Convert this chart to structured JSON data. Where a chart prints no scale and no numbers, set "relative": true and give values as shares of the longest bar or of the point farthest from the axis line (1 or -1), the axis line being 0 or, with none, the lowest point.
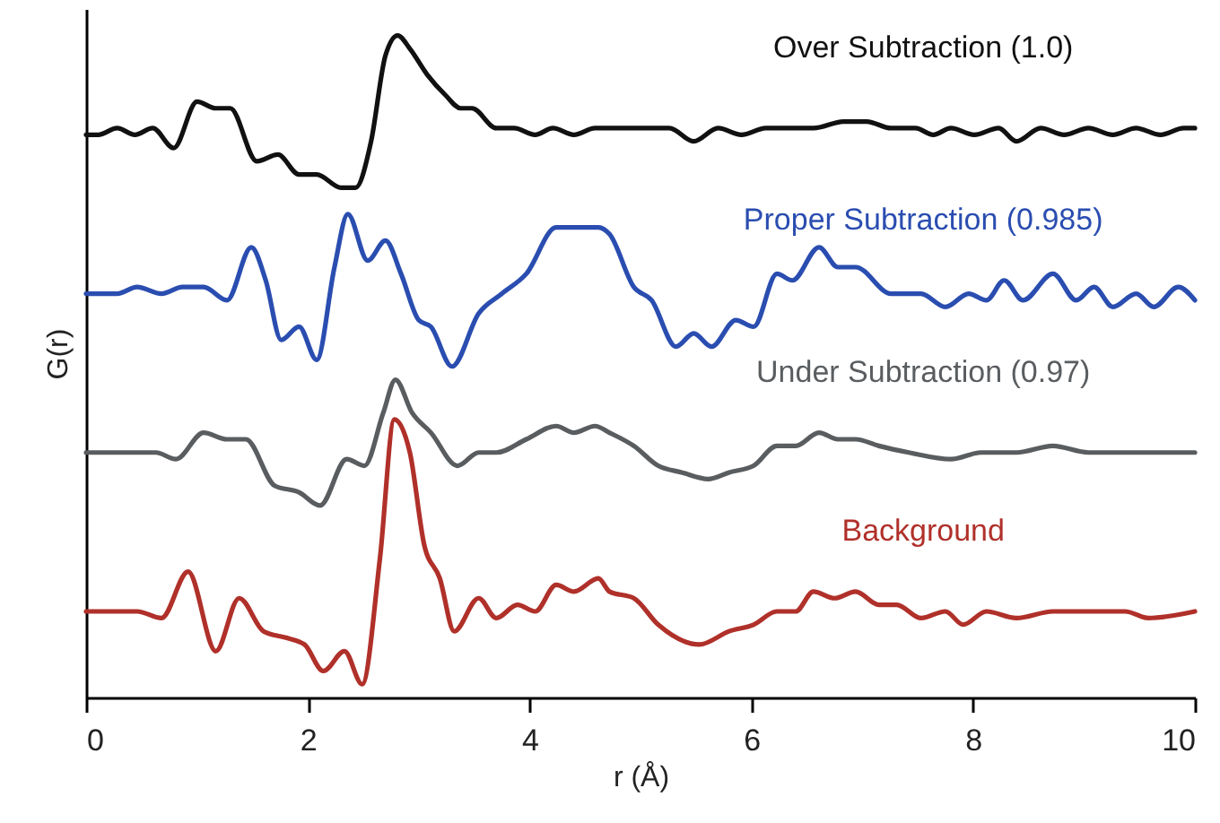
{
  "chart_data": {
    "type": "line",
    "relative": true,
    "xlabel": "r (Å)",
    "ylabel": "G(r)",
    "xlim": [
      0,
      10
    ],
    "xticks": [
      0,
      2,
      4,
      6,
      8,
      10
    ],
    "grid": false,
    "marker": "none",
    "line_style": "solid",
    "series": [
      {
        "name": "Over Subtraction (1.0)",
        "color": "#111111",
        "x": [
          0,
          0.11,
          0.28,
          0.44,
          0.6,
          0.79,
          1.0,
          1.17,
          1.3,
          1.54,
          1.73,
          1.92,
          2.08,
          2.3,
          2.43,
          2.57,
          2.7,
          2.81,
          2.92,
          3.08,
          3.24,
          3.38,
          3.48,
          3.7,
          3.86,
          4.05,
          4.21,
          4.4,
          4.59,
          4.72,
          4.94,
          5.1,
          5.26,
          5.48,
          5.7,
          5.91,
          6.13,
          6.34,
          6.56,
          6.83,
          7.04,
          7.26,
          7.48,
          7.64,
          7.8,
          8.01,
          8.23,
          8.39,
          8.61,
          8.82,
          9.04,
          9.26,
          9.47,
          9.69,
          9.9,
          10.0
        ],
        "values": [
          0.85,
          0.85,
          0.86,
          0.85,
          0.86,
          0.83,
          0.9,
          0.89,
          0.89,
          0.81,
          0.82,
          0.79,
          0.79,
          0.77,
          0.77,
          0.84,
          0.97,
          1.0,
          0.98,
          0.94,
          0.91,
          0.89,
          0.89,
          0.86,
          0.86,
          0.85,
          0.86,
          0.85,
          0.86,
          0.86,
          0.86,
          0.86,
          0.86,
          0.84,
          0.86,
          0.85,
          0.86,
          0.86,
          0.86,
          0.87,
          0.87,
          0.86,
          0.86,
          0.85,
          0.86,
          0.85,
          0.86,
          0.84,
          0.86,
          0.85,
          0.86,
          0.85,
          0.86,
          0.85,
          0.86,
          0.86
        ]
      },
      {
        "name": "Proper Subtraction (0.985)",
        "color": "#2a4db0",
        "x": [
          0,
          0.14,
          0.28,
          0.46,
          0.68,
          0.87,
          1.06,
          1.27,
          1.49,
          1.62,
          1.76,
          1.92,
          2.08,
          2.24,
          2.36,
          2.54,
          2.7,
          2.84,
          3.0,
          3.11,
          3.3,
          3.54,
          3.75,
          3.97,
          4.24,
          4.43,
          4.62,
          4.72,
          4.94,
          5.1,
          5.32,
          5.48,
          5.64,
          5.86,
          6.02,
          6.23,
          6.37,
          6.61,
          6.78,
          6.94,
          7.26,
          7.53,
          7.75,
          7.96,
          8.12,
          8.28,
          8.45,
          8.72,
          8.93,
          9.09,
          9.26,
          9.47,
          9.63,
          9.85,
          10.0
        ],
        "values": [
          0.61,
          0.61,
          0.61,
          0.62,
          0.61,
          0.62,
          0.62,
          0.6,
          0.68,
          0.63,
          0.54,
          0.56,
          0.51,
          0.65,
          0.73,
          0.66,
          0.69,
          0.64,
          0.57,
          0.56,
          0.5,
          0.58,
          0.61,
          0.64,
          0.71,
          0.71,
          0.71,
          0.7,
          0.62,
          0.6,
          0.53,
          0.55,
          0.53,
          0.57,
          0.56,
          0.64,
          0.63,
          0.68,
          0.65,
          0.65,
          0.61,
          0.61,
          0.59,
          0.61,
          0.6,
          0.63,
          0.6,
          0.64,
          0.6,
          0.62,
          0.59,
          0.61,
          0.59,
          0.62,
          0.6
        ]
      },
      {
        "name": "Under Subtraction (0.97)",
        "color": "#5a5d60",
        "x": [
          0,
          0.25,
          0.44,
          0.63,
          0.81,
          1.06,
          1.27,
          1.44,
          1.7,
          1.92,
          2.11,
          2.35,
          2.51,
          2.68,
          2.79,
          2.94,
          3.11,
          3.35,
          3.54,
          3.7,
          3.97,
          4.24,
          4.4,
          4.59,
          4.72,
          4.94,
          5.16,
          5.37,
          5.61,
          5.8,
          6.02,
          6.23,
          6.4,
          6.61,
          6.78,
          6.94,
          7.15,
          7.42,
          7.8,
          8.07,
          8.39,
          8.72,
          9.04,
          9.37,
          9.63,
          10.0
        ],
        "values": [
          0.37,
          0.37,
          0.37,
          0.37,
          0.36,
          0.4,
          0.39,
          0.39,
          0.32,
          0.31,
          0.29,
          0.36,
          0.35,
          0.43,
          0.48,
          0.43,
          0.4,
          0.35,
          0.37,
          0.37,
          0.39,
          0.41,
          0.4,
          0.41,
          0.4,
          0.38,
          0.35,
          0.34,
          0.33,
          0.34,
          0.35,
          0.38,
          0.38,
          0.4,
          0.39,
          0.39,
          0.38,
          0.37,
          0.36,
          0.37,
          0.37,
          0.38,
          0.37,
          0.37,
          0.37,
          0.37
        ]
      },
      {
        "name": "Background",
        "color": "#b0302a",
        "x": [
          0,
          0.25,
          0.46,
          0.68,
          0.92,
          1.17,
          1.38,
          1.6,
          1.81,
          1.97,
          2.14,
          2.33,
          2.49,
          2.65,
          2.78,
          2.92,
          3.05,
          3.19,
          3.32,
          3.54,
          3.7,
          3.89,
          4.05,
          4.24,
          4.4,
          4.62,
          4.72,
          4.94,
          5.16,
          5.53,
          5.8,
          6.02,
          6.23,
          6.4,
          6.56,
          6.75,
          6.94,
          7.15,
          7.31,
          7.53,
          7.75,
          7.91,
          8.12,
          8.39,
          8.72,
          9.04,
          9.37,
          9.58,
          10.0
        ],
        "values": [
          0.13,
          0.13,
          0.13,
          0.12,
          0.19,
          0.07,
          0.15,
          0.1,
          0.09,
          0.08,
          0.04,
          0.07,
          0.02,
          0.21,
          0.42,
          0.37,
          0.23,
          0.18,
          0.1,
          0.15,
          0.12,
          0.14,
          0.13,
          0.17,
          0.16,
          0.18,
          0.16,
          0.15,
          0.11,
          0.08,
          0.1,
          0.11,
          0.13,
          0.13,
          0.16,
          0.15,
          0.16,
          0.14,
          0.14,
          0.12,
          0.13,
          0.11,
          0.13,
          0.12,
          0.13,
          0.13,
          0.13,
          0.12,
          0.13
        ]
      }
    ]
  }
}
